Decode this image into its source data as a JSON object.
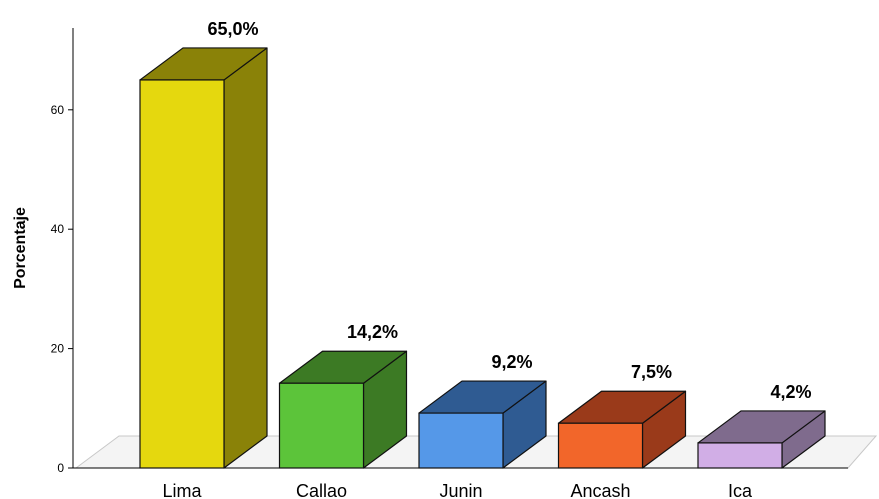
{
  "chart_data": {
    "type": "bar",
    "title": "",
    "xlabel": "",
    "ylabel": "Porcentaje",
    "ylim": [
      0,
      70
    ],
    "yticks": [
      0,
      20,
      40,
      60
    ],
    "categories": [
      "Lima",
      "Callao",
      "Junin",
      "Ancash",
      "Ica"
    ],
    "values": [
      65.0,
      14.2,
      9.2,
      7.5,
      4.2
    ],
    "value_labels": [
      "65,0%",
      "14,2%",
      "9,2%",
      "7,5%",
      "4,2%"
    ],
    "colors": [
      {
        "front": "#e5d80e",
        "side": "#8a8208",
        "top": "#8a8208"
      },
      {
        "front": "#5cc43a",
        "side": "#3c7a24",
        "top": "#3c7a24"
      },
      {
        "front": "#5598e8",
        "side": "#2f5b92",
        "top": "#2f5b92"
      },
      {
        "front": "#f2662a",
        "side": "#9a3a1a",
        "top": "#9a3a1a"
      },
      {
        "front": "#d1aee6",
        "side": "#7f6b8d",
        "top": "#7f6b8d"
      }
    ],
    "grid": false,
    "legend": "none"
  }
}
